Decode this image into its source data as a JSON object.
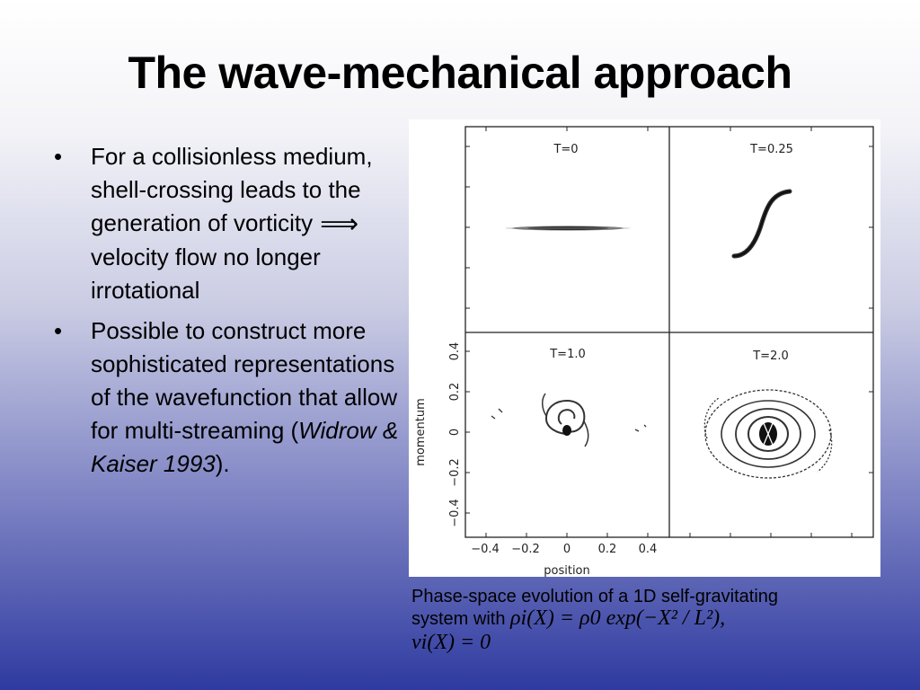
{
  "slide": {
    "title": "The wave-mechanical approach",
    "bullets": [
      {
        "text_before_arrow": "For a collisionless medium, shell-crossing leads to the generation of vorticity",
        "arrow_icon": "implies-arrow",
        "text_after_arrow": "velocity flow no longer irrotational"
      },
      {
        "text": "Possible to construct more sophisticated representations of the wavefunction that allow for multi-streaming (",
        "citation": "Widrow & Kaiser 1993",
        "text_end": ")."
      }
    ]
  },
  "figure": {
    "panel_labels": [
      "T=0",
      "T=0.25",
      "T=1.0",
      "T=2.0"
    ],
    "y_axis_label": "momentum",
    "x_axis_label": "position",
    "y_ticks": [
      "−0.4",
      "−0.2",
      "0",
      "0.2",
      "0.4"
    ],
    "x_ticks": [
      "−0.4",
      "−0.2",
      "0",
      "0.2",
      "0.4"
    ]
  },
  "caption": {
    "line1": "Phase-space evolution of a 1D self-gravitating",
    "line2_prefix": "system with",
    "formula1": "ρi(X) = ρ0 exp(−X² / L²),",
    "formula2": "vi(X) = 0"
  }
}
